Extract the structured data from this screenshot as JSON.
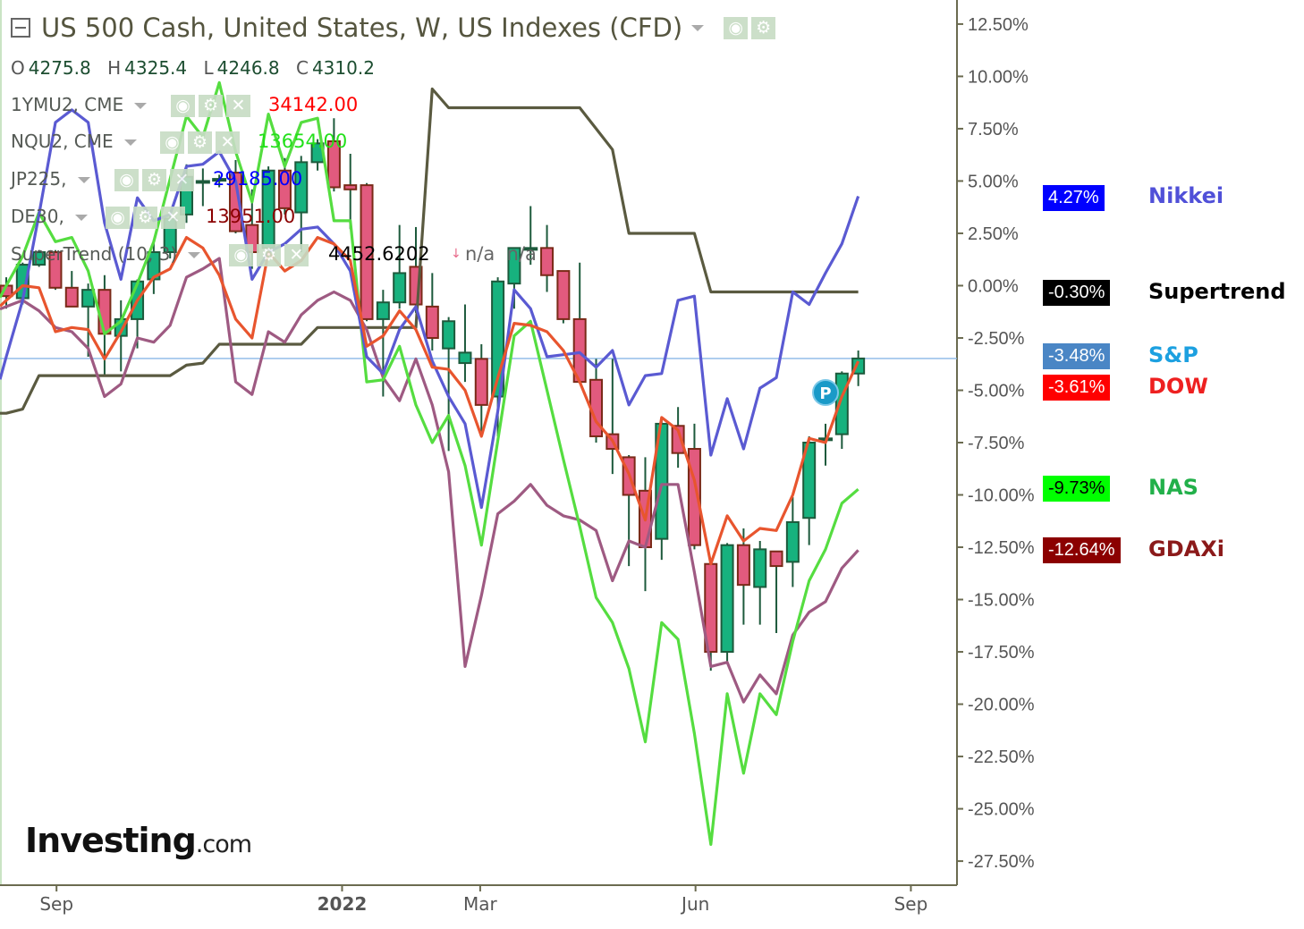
{
  "header": {
    "title": "US 500 Cash, United States, W, US Indexes (CFD)",
    "ohlc": [
      {
        "label": "O",
        "value": "4275.8"
      },
      {
        "label": "H",
        "value": "4325.4"
      },
      {
        "label": "L",
        "value": "4246.8"
      },
      {
        "label": "C",
        "value": "4310.2"
      }
    ]
  },
  "legend": [
    {
      "symbol": "1YMU2, CME",
      "value": "34142.00",
      "color": "#ff0000"
    },
    {
      "symbol": "NQU2, CME",
      "value": "13654.00",
      "color": "#22e01a"
    },
    {
      "symbol": "JP225,",
      "value": "29185.00",
      "color": "#0000ff"
    },
    {
      "symbol": "DE30,",
      "value": "13951.00",
      "color": "#8b0000"
    },
    {
      "symbol": "SuperTrend (10, 3)",
      "value": "4452.6202",
      "color": "#000000",
      "extra": "n/a  n/a"
    }
  ],
  "icons": {
    "visible": "eye-icon",
    "settings": "gear-icon",
    "remove": "close-icon",
    "collapse": "minus-square-icon",
    "dropdown": "caret-down-icon"
  },
  "right_labels": [
    {
      "tag": "4.27%",
      "name": "Nikkei",
      "tag_bg": "#0000ff",
      "tag_fg": "#ffffff",
      "name_color": "#5050d8"
    },
    {
      "tag": "-0.30%",
      "name": "Supertrend",
      "tag_bg": "#000000",
      "tag_fg": "#ffffff",
      "name_color": "#000000"
    },
    {
      "tag": "-3.48%",
      "name": "S&P",
      "tag_bg": "#4a86c5",
      "tag_fg": "#ffffff",
      "name_color": "#1ca0e0"
    },
    {
      "tag": "-3.61%",
      "name": "DOW",
      "tag_bg": "#ff0000",
      "tag_fg": "#ffffff",
      "name_color": "#ee2020"
    },
    {
      "tag": "-9.73%",
      "name": "NAS",
      "tag_bg": "#00ff00",
      "tag_fg": "#000000",
      "name_color": "#22b04a"
    },
    {
      "tag": "-12.64%",
      "name": "GDAXi",
      "tag_bg": "#8b0000",
      "tag_fg": "#ffffff",
      "name_color": "#8b1a1a"
    }
  ],
  "marker": "P",
  "logo": {
    "main": "Investing",
    "suffix": ".com"
  },
  "chart_data": {
    "type": "candlestick+line",
    "x": [
      "2021-08-09",
      "2021-08-16",
      "2021-08-23",
      "2021-08-30",
      "2021-09-06",
      "2021-09-13",
      "2021-09-20",
      "2021-09-27",
      "2021-10-04",
      "2021-10-11",
      "2021-10-18",
      "2021-10-25",
      "2021-11-01",
      "2021-11-08",
      "2021-11-15",
      "2021-11-22",
      "2021-11-29",
      "2021-12-06",
      "2021-12-13",
      "2021-12-20",
      "2021-12-27",
      "2022-01-03",
      "2022-01-10",
      "2022-01-17",
      "2022-01-24",
      "2022-01-31",
      "2022-02-07",
      "2022-02-14",
      "2022-02-21",
      "2022-02-28",
      "2022-03-07",
      "2022-03-14",
      "2022-03-21",
      "2022-03-28",
      "2022-04-04",
      "2022-04-11",
      "2022-04-18",
      "2022-04-25",
      "2022-05-02",
      "2022-05-09",
      "2022-05-16",
      "2022-05-23",
      "2022-05-30",
      "2022-06-06",
      "2022-06-13",
      "2022-06-20",
      "2022-06-27",
      "2022-07-04",
      "2022-07-11",
      "2022-07-18",
      "2022-07-25",
      "2022-08-01",
      "2022-08-08"
    ],
    "x_ticks": [
      {
        "label": "Sep",
        "date": "2021-09-01",
        "bold": false
      },
      {
        "label": "2022",
        "date": "2022-01-01",
        "bold": true
      },
      {
        "label": "Mar",
        "date": "2022-03-01",
        "bold": false
      },
      {
        "label": "Jun",
        "date": "2022-06-01",
        "bold": false
      },
      {
        "label": "Sep",
        "date": "2022-09-01",
        "bold": false
      }
    ],
    "y_ticks": [
      "12.50%",
      "10.00%",
      "7.50%",
      "5.00%",
      "2.50%",
      "0.00%",
      "-2.50%",
      "-5.00%",
      "-7.50%",
      "-10.00%",
      "-12.50%",
      "-15.00%",
      "-17.50%",
      "-20.00%",
      "-22.50%",
      "-25.00%",
      "-27.50%"
    ],
    "y_tick_values": [
      12.5,
      10,
      7.5,
      5,
      2.5,
      0,
      -2.5,
      -5,
      -7.5,
      -10,
      -12.5,
      -15,
      -17.5,
      -20,
      -22.5,
      -25,
      -27.5
    ],
    "ylim": [
      -28.65,
      13.65
    ],
    "y_unit": "%",
    "last_price_line": -3.48,
    "candles": {
      "name": "S&P",
      "up_color": "#17b27e",
      "down_color": "#e25a7e",
      "ohlc": [
        [
          0.0,
          0.4,
          -1.1,
          -0.5
        ],
        [
          -0.6,
          1.1,
          -0.9,
          1.0
        ],
        [
          1.0,
          1.7,
          0.9,
          1.6
        ],
        [
          1.6,
          1.7,
          -0.2,
          -0.1
        ],
        [
          -0.1,
          0.7,
          -1.0,
          -1.0
        ],
        [
          -1.0,
          0.1,
          -3.4,
          -0.2
        ],
        [
          -0.2,
          0.5,
          -4.3,
          -2.3
        ],
        [
          -2.4,
          -0.7,
          -4.1,
          -1.6
        ],
        [
          -1.6,
          0.3,
          -3.0,
          0.2
        ],
        [
          0.3,
          2.2,
          -0.4,
          1.6
        ],
        [
          1.6,
          3.4,
          1.3,
          3.2
        ],
        [
          3.4,
          5.8,
          3.0,
          5.2
        ],
        [
          5.0,
          5.6,
          3.8,
          5.0
        ],
        [
          5.1,
          5.3,
          4.7,
          5.1
        ],
        [
          5.4,
          6.0,
          2.5,
          2.6
        ],
        [
          2.9,
          4.6,
          0.8,
          1.6
        ],
        [
          1.8,
          5.7,
          1.6,
          5.5
        ],
        [
          5.5,
          6.1,
          3.4,
          3.7
        ],
        [
          3.5,
          6.2,
          1.6,
          5.9
        ],
        [
          5.9,
          7.0,
          5.5,
          6.8
        ],
        [
          6.9,
          8.0,
          4.5,
          4.7
        ],
        [
          4.8,
          6.3,
          2.7,
          4.6
        ],
        [
          4.8,
          4.9,
          -1.7,
          -1.6
        ],
        [
          -1.6,
          -0.2,
          -5.3,
          -0.8
        ],
        [
          -0.8,
          2.9,
          -1.1,
          0.6
        ],
        [
          0.9,
          2.8,
          -1.3,
          -0.9
        ],
        [
          -1.0,
          0.6,
          -3.1,
          -2.5
        ],
        [
          -3.0,
          -1.5,
          -7.9,
          -1.7
        ],
        [
          -3.7,
          -0.9,
          -4.6,
          -3.2
        ],
        [
          -3.5,
          -2.8,
          -7.1,
          -5.7
        ],
        [
          -5.3,
          0.4,
          -7.2,
          0.2
        ],
        [
          0.1,
          1.8,
          -1.1,
          1.8
        ],
        [
          1.8,
          3.8,
          1.0,
          1.8
        ],
        [
          1.8,
          2.9,
          -0.3,
          0.5
        ],
        [
          0.7,
          0.7,
          -1.8,
          -1.6
        ],
        [
          -1.6,
          1.1,
          -4.6,
          -4.6
        ],
        [
          -4.5,
          -3.5,
          -7.5,
          -7.2
        ],
        [
          -7.1,
          -3.5,
          -9.0,
          -7.8
        ],
        [
          -8.2,
          -8.1,
          -13.4,
          -10.0
        ],
        [
          -9.8,
          -8.2,
          -14.6,
          -12.5
        ],
        [
          -12.1,
          -6.4,
          -13.1,
          -6.6
        ],
        [
          -6.7,
          -5.8,
          -8.7,
          -8.0
        ],
        [
          -7.8,
          -6.6,
          -12.6,
          -12.4
        ],
        [
          -13.3,
          -13.1,
          -18.4,
          -17.5
        ],
        [
          -17.5,
          -12.3,
          -18.0,
          -12.4
        ],
        [
          -12.4,
          -11.6,
          -16.2,
          -14.3
        ],
        [
          -14.4,
          -12.2,
          -16.2,
          -12.6
        ],
        [
          -12.7,
          -12.7,
          -16.6,
          -13.4
        ],
        [
          -13.2,
          -10.1,
          -14.4,
          -11.3
        ],
        [
          -11.1,
          -7.2,
          -12.4,
          -7.5
        ],
        [
          -7.3,
          -6.6,
          -8.6,
          -7.3
        ],
        [
          -7.1,
          -4.1,
          -7.8,
          -4.2
        ],
        [
          -4.2,
          -3.1,
          -4.8,
          -3.48
        ]
      ]
    },
    "series": [
      {
        "name": "Nikkei",
        "color": "#5a5ad2",
        "values": [
          -3.4,
          -0.7,
          3.4,
          7.8,
          8.4,
          7.8,
          3.0,
          0.3,
          4.2,
          3.1,
          3.4,
          5.7,
          5.8,
          6.4,
          5.0,
          0.3,
          1.6,
          2.0,
          2.7,
          2.8,
          2.0,
          0.7,
          -3.4,
          -4.2,
          -2.1,
          -1.0,
          -3.6,
          -5.3,
          -6.6,
          -10.6,
          -6.0,
          -0.2,
          -1.1,
          -3.4,
          -3.3,
          -3.2,
          -3.9,
          -3.1,
          -5.7,
          -4.3,
          -4.2,
          -0.7,
          -0.5,
          -8.1,
          -5.4,
          -7.8,
          -4.9,
          -4.4,
          -0.3,
          -0.9,
          0.6,
          2.0,
          4.27
        ]
      },
      {
        "name": "GDAXi",
        "color": "#9e5a82",
        "values": [
          -1.0,
          -0.7,
          -1.2,
          -2.0,
          -2.2,
          -3.0,
          -5.3,
          -4.7,
          -2.5,
          -2.7,
          -1.9,
          0.4,
          0.8,
          1.3,
          -4.6,
          -5.2,
          -2.2,
          -2.7,
          -1.4,
          -0.7,
          -0.3,
          -0.7,
          -2.1,
          -4.4,
          -5.5,
          -3.5,
          -5.7,
          -8.9,
          -18.2,
          -14.8,
          -10.9,
          -10.3,
          -9.5,
          -10.5,
          -11.0,
          -11.2,
          -11.7,
          -14.1,
          -12.2,
          -12.5,
          -9.5,
          -9.5,
          -13.7,
          -18.2,
          -18.0,
          -19.9,
          -18.6,
          -19.5,
          -16.7,
          -15.6,
          -15.1,
          -13.5,
          -12.64
        ]
      },
      {
        "name": "NAS",
        "color": "#55dd40",
        "values": [
          0.0,
          1.4,
          3.5,
          2.1,
          2.3,
          0.7,
          -2.3,
          -1.7,
          0.1,
          2.1,
          5.1,
          8.1,
          7.1,
          9.7,
          6.4,
          4.0,
          8.2,
          5.7,
          7.8,
          8.0,
          3.1,
          3.1,
          -4.6,
          -4.5,
          -2.9,
          -5.7,
          -7.5,
          -6.2,
          -8.6,
          -12.4,
          -7.4,
          -2.4,
          -1.7,
          -5.0,
          -8.3,
          -11.5,
          -14.9,
          -16.1,
          -18.3,
          -21.8,
          -16.1,
          -16.9,
          -21.4,
          -26.7,
          -19.5,
          -23.3,
          -19.5,
          -20.5,
          -17.0,
          -14.1,
          -12.6,
          -10.4,
          -9.73
        ]
      },
      {
        "name": "DOW",
        "color": "#e8552e",
        "values": [
          -0.7,
          0.0,
          -0.1,
          -2.2,
          -2.0,
          -2.1,
          -3.5,
          -2.2,
          -0.7,
          0.4,
          0.8,
          2.3,
          1.8,
          0.5,
          -1.6,
          -2.5,
          1.6,
          0.7,
          1.2,
          2.3,
          2.0,
          1.2,
          -2.9,
          -2.4,
          -1.2,
          -2.1,
          -3.9,
          -4.0,
          -5.0,
          -7.2,
          -4.4,
          -1.8,
          -1.9,
          -2.2,
          -3.1,
          -4.6,
          -6.5,
          -7.4,
          -9.0,
          -11.2,
          -6.3,
          -6.9,
          -9.3,
          -13.3,
          -11.0,
          -12.2,
          -11.6,
          -11.7,
          -10.0,
          -7.3,
          -7.5,
          -5.3,
          -3.61
        ]
      },
      {
        "name": "Supertrend",
        "color": "#5a5a40",
        "values": [
          -6.1,
          -5.9,
          -4.3,
          -4.3,
          -4.3,
          -4.3,
          -4.3,
          -4.3,
          -4.3,
          -4.3,
          -4.3,
          -3.8,
          -3.7,
          -2.8,
          -2.8,
          -2.8,
          -2.8,
          -2.8,
          -2.8,
          -2.0,
          -2.0,
          -2.0,
          -2.0,
          -2.0,
          -2.0,
          -2.0,
          9.4,
          8.5,
          8.5,
          8.5,
          8.5,
          8.5,
          8.5,
          8.5,
          8.5,
          8.5,
          7.5,
          6.5,
          2.5,
          2.5,
          2.5,
          2.5,
          2.5,
          -0.3,
          -0.3,
          -0.3,
          -0.3,
          -0.3,
          -0.3,
          -0.3,
          -0.3,
          -0.3,
          -0.3
        ]
      }
    ],
    "grid": false
  }
}
